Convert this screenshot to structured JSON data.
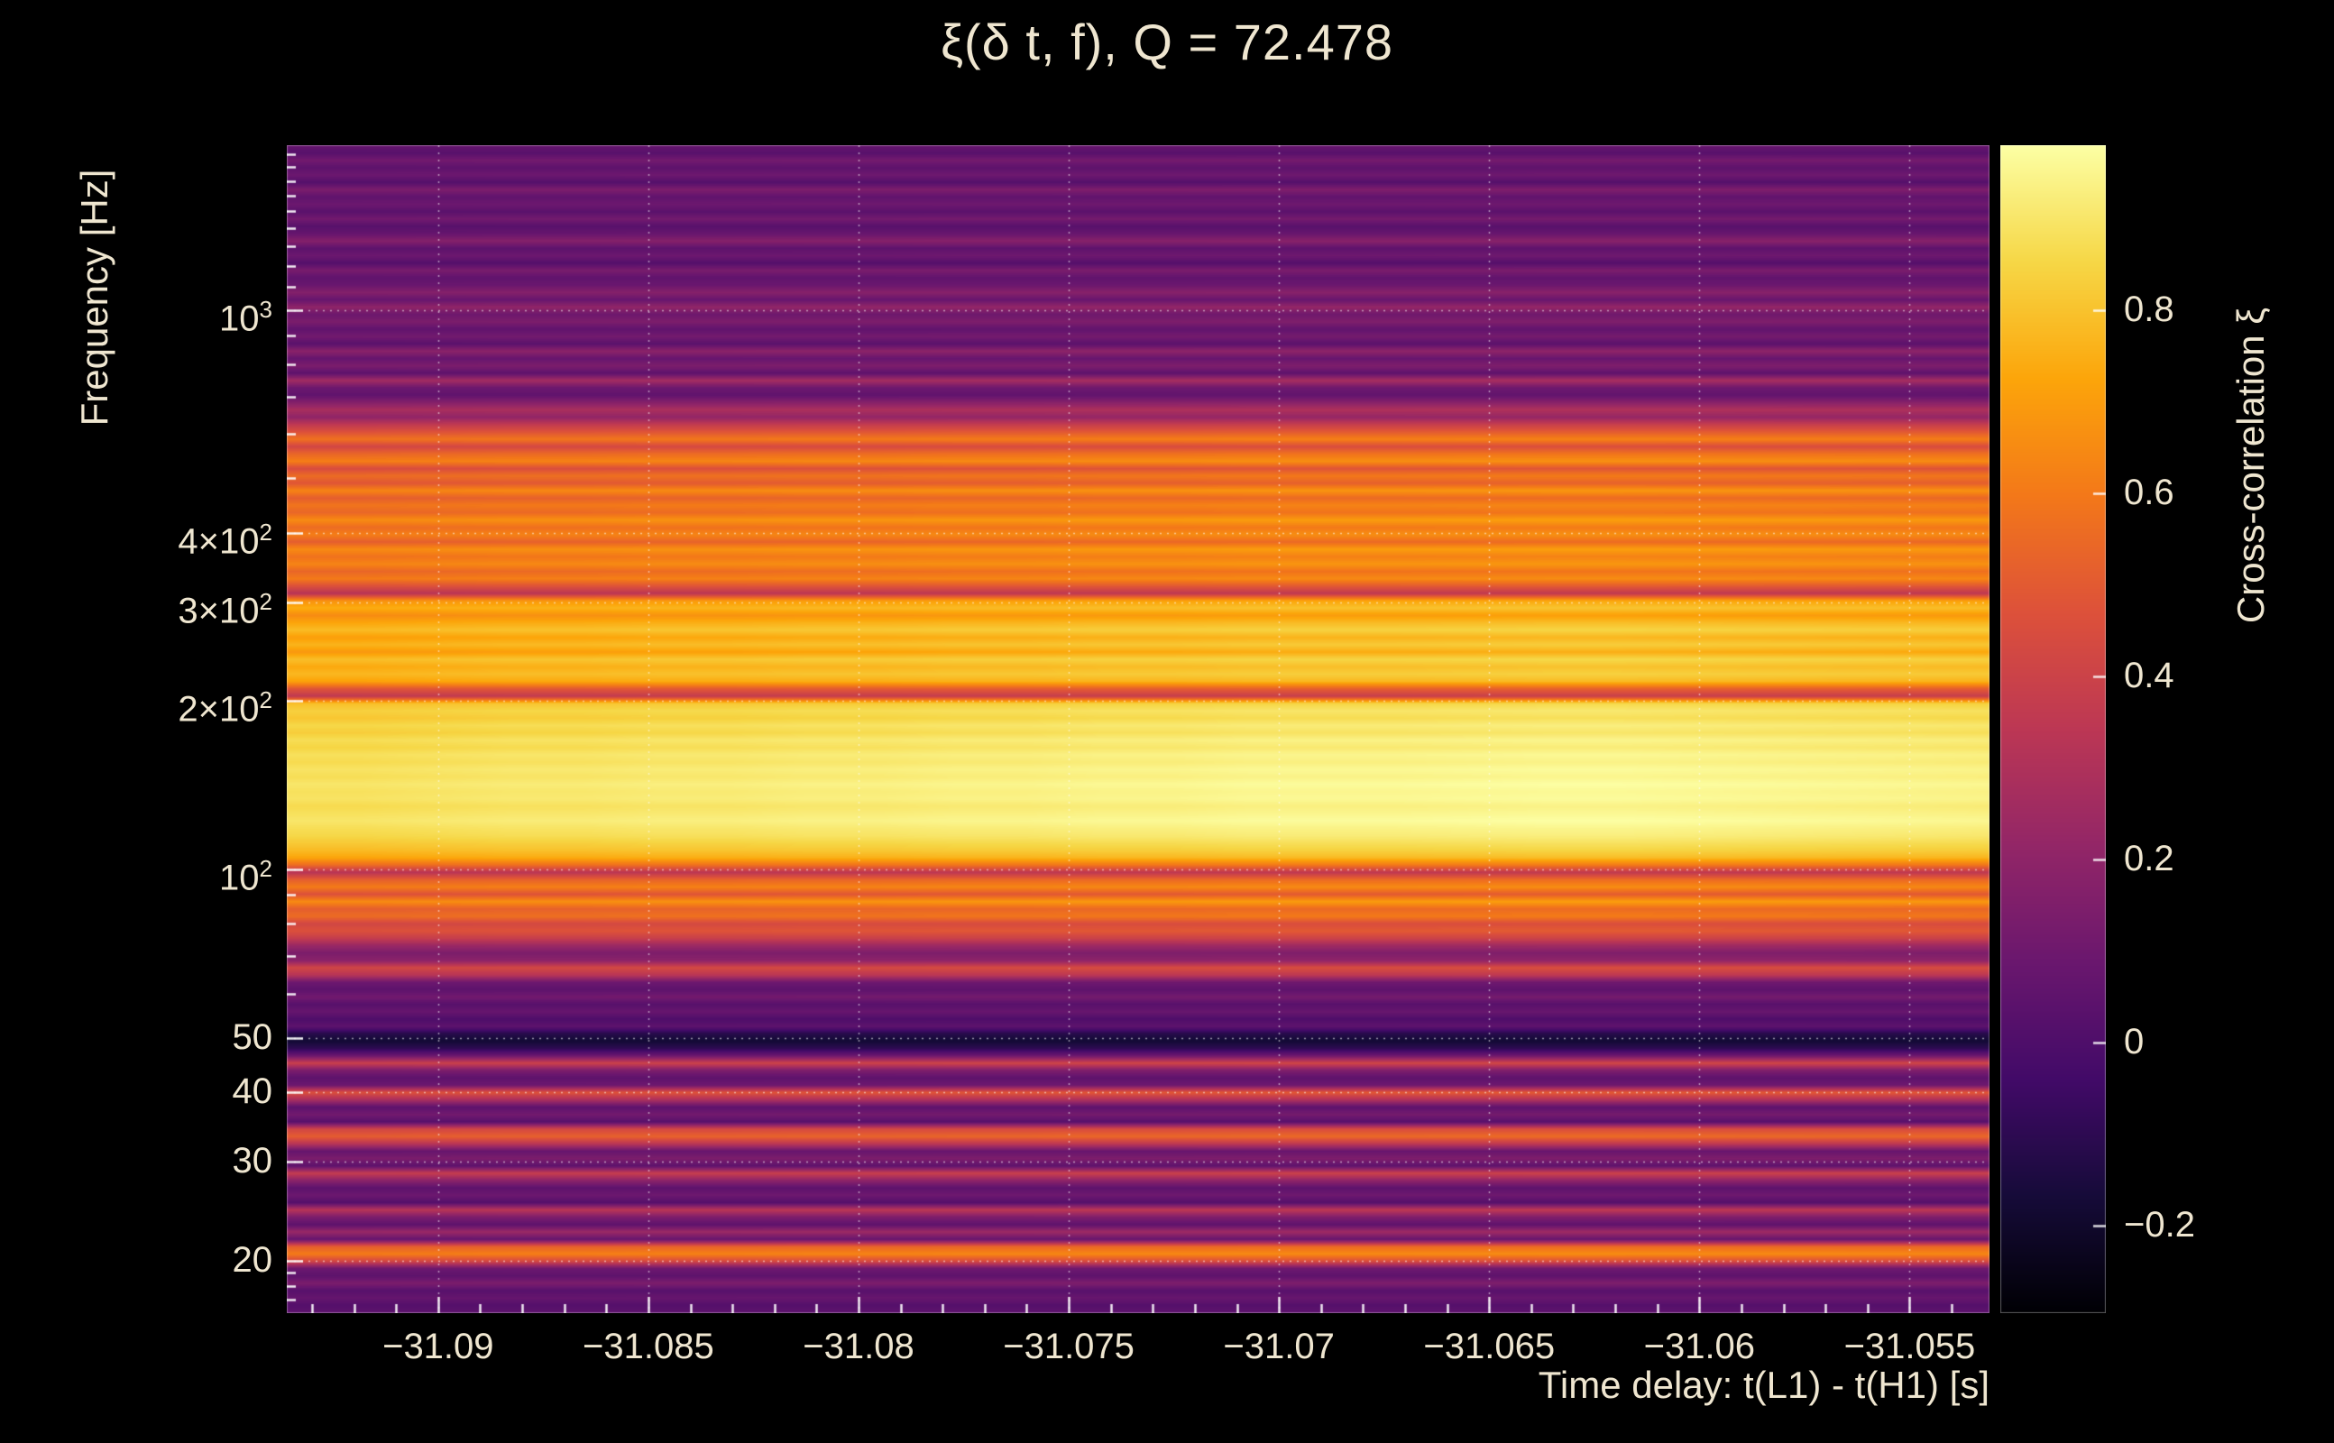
{
  "title": "ξ(δ t, f), Q = 72.478",
  "style": {
    "background": "#000000",
    "text_color": "#efe6d0",
    "grid_color": "#ffffff"
  },
  "axes": {
    "x": {
      "label": "Time delay: t(L1) - t(H1) [s]",
      "range": [
        -31.0936,
        -31.0531
      ],
      "major_tick_values": [
        -31.09,
        -31.085,
        -31.08,
        -31.075,
        -31.07,
        -31.065,
        -31.06,
        -31.055
      ],
      "major_tick_labels": [
        "−31.09",
        "−31.085",
        "−31.08",
        "−31.075",
        "−31.07",
        "−31.065",
        "−31.06",
        "−31.055"
      ],
      "minor_step": 0.001
    },
    "y": {
      "label": "Frequency [Hz]",
      "scale": "log",
      "range_hz": [
        16.1,
        1970
      ],
      "major_ticks": [
        {
          "hz": 1000,
          "label": "10^3"
        },
        {
          "hz": 400,
          "label": "4×10^2"
        },
        {
          "hz": 300,
          "label": "3×10^2"
        },
        {
          "hz": 200,
          "label": "2×10^2"
        },
        {
          "hz": 100,
          "label": "10^2"
        },
        {
          "hz": 50,
          "label": "50"
        },
        {
          "hz": 40,
          "label": "40"
        },
        {
          "hz": 30,
          "label": "30"
        },
        {
          "hz": 20,
          "label": "20"
        }
      ],
      "minor_ticks_hz": [
        1900,
        1800,
        1700,
        1600,
        1500,
        1400,
        1300,
        1200,
        1100,
        900,
        800,
        700,
        600,
        500,
        90,
        80,
        70,
        60,
        19,
        18,
        17
      ]
    },
    "colorbar": {
      "label": "Cross-correlation ξ",
      "range": [
        -0.296,
        0.98
      ],
      "tick_values": [
        0.8,
        0.6,
        0.4,
        0.2,
        0,
        -0.2
      ],
      "tick_labels": [
        "0.8",
        "0.6",
        "0.4",
        "0.2",
        "0",
        "−0.2"
      ]
    }
  },
  "chart_data": {
    "type": "heatmap",
    "title": "ξ(δ t, f), Q = 72.478",
    "q_value": 72.478,
    "xlabel": "Time delay: t(L1) - t(H1) [s]",
    "ylabel": "Frequency [Hz]",
    "colorbar_label": "Cross-correlation ξ",
    "x_range_s": [
      -31.0936,
      -31.0531
    ],
    "y_range_hz": [
      16.1,
      1970
    ],
    "y_scale": "log",
    "value_range": [
      -0.296,
      0.98
    ],
    "frequency_sampling": {
      "top_hz": 1970,
      "bottom_hz": 16.1,
      "spacing": "log-uniform",
      "n": 160
    },
    "xi_profile": [
      0.08,
      0.03,
      0.12,
      0.05,
      0.1,
      0.02,
      0.15,
      0.06,
      0.1,
      0.04,
      0.12,
      0.03,
      0.08,
      0.18,
      0.05,
      0.1,
      0.02,
      0.14,
      0.06,
      0.09,
      0.18,
      0.08,
      0.22,
      0.1,
      0.15,
      0.06,
      0.12,
      0.04,
      0.2,
      0.08,
      0.15,
      0.05,
      0.28,
      0.1,
      0.06,
      0.18,
      0.3,
      0.22,
      0.38,
      0.5,
      0.62,
      0.45,
      0.58,
      0.66,
      0.48,
      0.6,
      0.52,
      0.68,
      0.55,
      0.63,
      0.58,
      0.7,
      0.6,
      0.66,
      0.55,
      0.7,
      0.62,
      0.68,
      0.58,
      0.65,
      0.5,
      0.35,
      0.72,
      0.8,
      0.7,
      0.78,
      0.84,
      0.76,
      0.82,
      0.74,
      0.85,
      0.79,
      0.83,
      0.77,
      0.52,
      0.38,
      0.85,
      0.9,
      0.87,
      0.92,
      0.89,
      0.94,
      0.91,
      0.95,
      0.93,
      0.96,
      0.94,
      0.97,
      0.95,
      0.96,
      0.93,
      0.95,
      0.97,
      0.94,
      0.92,
      0.88,
      0.84,
      0.78,
      0.6,
      0.35,
      0.55,
      0.65,
      0.5,
      0.7,
      0.55,
      0.6,
      0.45,
      0.5,
      0.4,
      0.25,
      0.15,
      0.2,
      0.45,
      0.35,
      0.1,
      0.05,
      0.12,
      0.03,
      0.08,
      0.0,
      0.05,
      -0.12,
      -0.18,
      -0.1,
      0.1,
      0.42,
      0.15,
      0.05,
      0.1,
      0.5,
      0.3,
      0.05,
      0.12,
      0.03,
      0.45,
      0.55,
      0.35,
      0.08,
      0.15,
      0.05,
      0.4,
      0.2,
      0.05,
      0.1,
      0.02,
      0.35,
      0.15,
      0.05,
      0.25,
      0.08,
      0.55,
      0.65,
      0.45,
      0.1,
      0.05,
      0.15,
      0.03,
      0.08,
      0.02,
      0.05
    ],
    "time_envelope": [
      0.93,
      0.93,
      0.94,
      0.95,
      0.95,
      0.96,
      0.96,
      0.97,
      0.97,
      0.98,
      0.98,
      0.99,
      0.99,
      1.0,
      1.0,
      1.0,
      1.005,
      1.01,
      1.01,
      1.005,
      1.0,
      0.995,
      0.99,
      0.985
    ],
    "colormap": {
      "name": "inferno",
      "stops": [
        [
          0.0,
          "#000004"
        ],
        [
          0.1,
          "#160b39"
        ],
        [
          0.2,
          "#420a68"
        ],
        [
          0.3,
          "#6a176e"
        ],
        [
          0.4,
          "#932667"
        ],
        [
          0.5,
          "#bc3754"
        ],
        [
          0.6,
          "#dd513a"
        ],
        [
          0.7,
          "#f37819"
        ],
        [
          0.8,
          "#fca50a"
        ],
        [
          0.9,
          "#f6d746"
        ],
        [
          1.0,
          "#fcffa4"
        ]
      ]
    }
  }
}
